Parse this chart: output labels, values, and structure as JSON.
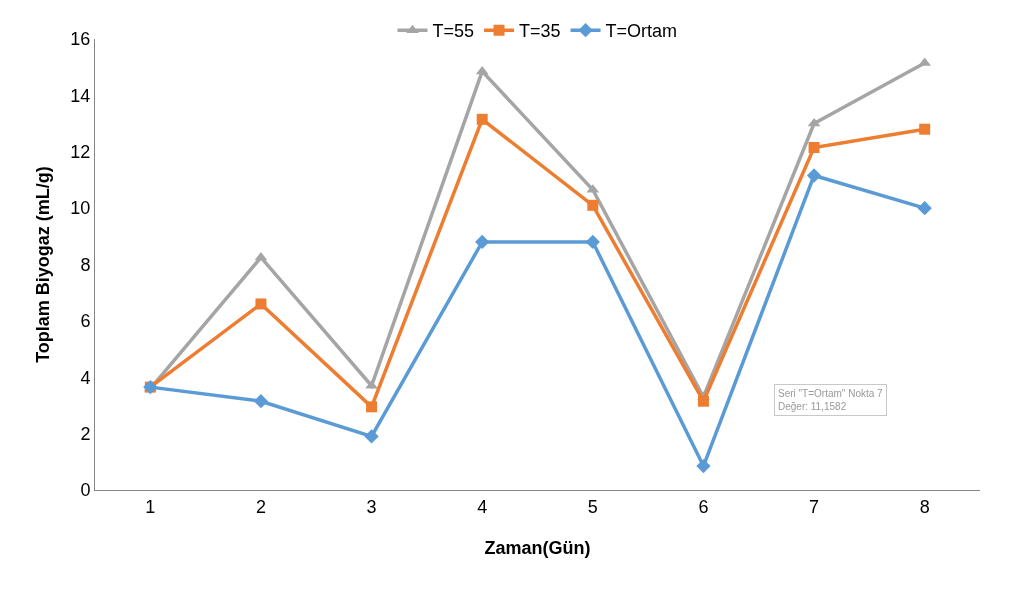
{
  "chart_data": {
    "type": "line",
    "xlabel": "Zaman(Gün)",
    "ylabel": "Toplam Biyogaz (mL/g)",
    "categories": [
      "1",
      "2",
      "3",
      "4",
      "5",
      "6",
      "7",
      "8"
    ],
    "series": [
      {
        "name": "T=55",
        "color": "#a5a5a5",
        "marker": "triangle",
        "values": [
          3.6,
          8.25,
          3.7,
          14.85,
          10.65,
          3.3,
          13.0,
          15.15
        ]
      },
      {
        "name": "T=35",
        "color": "#ed7d31",
        "marker": "square",
        "values": [
          3.65,
          6.6,
          2.95,
          13.15,
          10.1,
          3.15,
          12.15,
          12.8
        ]
      },
      {
        "name": "T=Ortam",
        "color": "#5b9bd5",
        "marker": "diamond",
        "values": [
          3.65,
          3.15,
          1.9,
          8.8,
          8.8,
          0.85,
          11.1582,
          10.0
        ]
      }
    ],
    "ylim": [
      0,
      16
    ],
    "yticks": [
      0,
      2,
      4,
      6,
      8,
      10,
      12,
      14,
      16
    ],
    "grid": false,
    "legend": "top",
    "line_style": "solid",
    "annotations": [
      "Seri \"T=Ortam\" Nokta 7\nDeğer: 11,1582"
    ]
  }
}
